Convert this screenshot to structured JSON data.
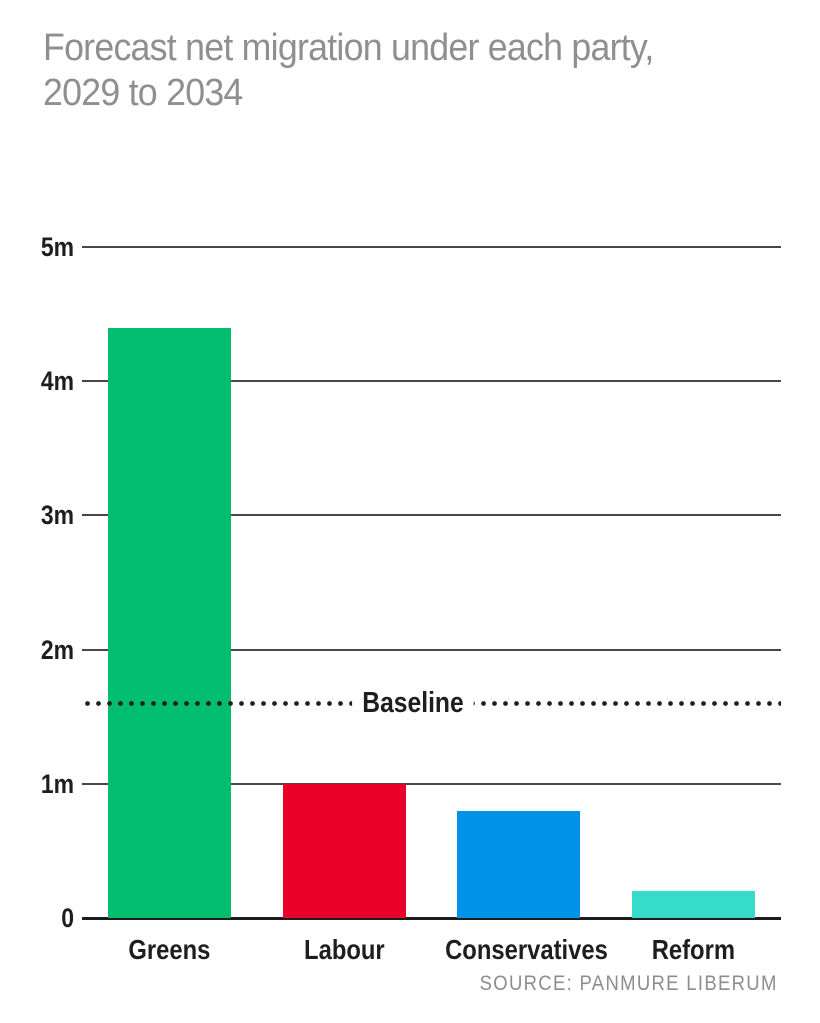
{
  "header": {
    "title": "Forecast net migration under each party,\n2029 to 2034"
  },
  "chart_data": {
    "type": "bar",
    "title": "Forecast net migration under each party, 2029 to 2034",
    "categories": [
      "Greens",
      "Labour",
      "Conservatives",
      "Reform"
    ],
    "values": [
      4.4,
      1.0,
      0.8,
      0.2
    ],
    "unit": "millions of people",
    "bar_colors": [
      "#00bd70",
      "#eb0029",
      "#0091e9",
      "#36dcca"
    ],
    "yticks": [
      {
        "label": "5m",
        "value": 5
      },
      {
        "label": "4m",
        "value": 4
      },
      {
        "label": "3m",
        "value": 3
      },
      {
        "label": "2m",
        "value": 2
      },
      {
        "label": "1m",
        "value": 1
      },
      {
        "label": "0",
        "value": 0
      }
    ],
    "ylim": [
      0,
      5
    ],
    "xlabel": "",
    "ylabel": "",
    "grid": "horizontal",
    "legend": "none",
    "baseline": {
      "label": "Baseline",
      "value": 1.6,
      "style": "dotted",
      "color": "#1f1f1f"
    }
  },
  "colors": {
    "title_gray": "#8f8f8f",
    "source_gray": "#8d8d8d",
    "text_dark": "#1e1e1e",
    "gridline": "#474747",
    "axis": "#1c1c1c",
    "background": "#ffffff"
  },
  "source": {
    "label": "SOURCE: PANMURE LIBERUM"
  }
}
